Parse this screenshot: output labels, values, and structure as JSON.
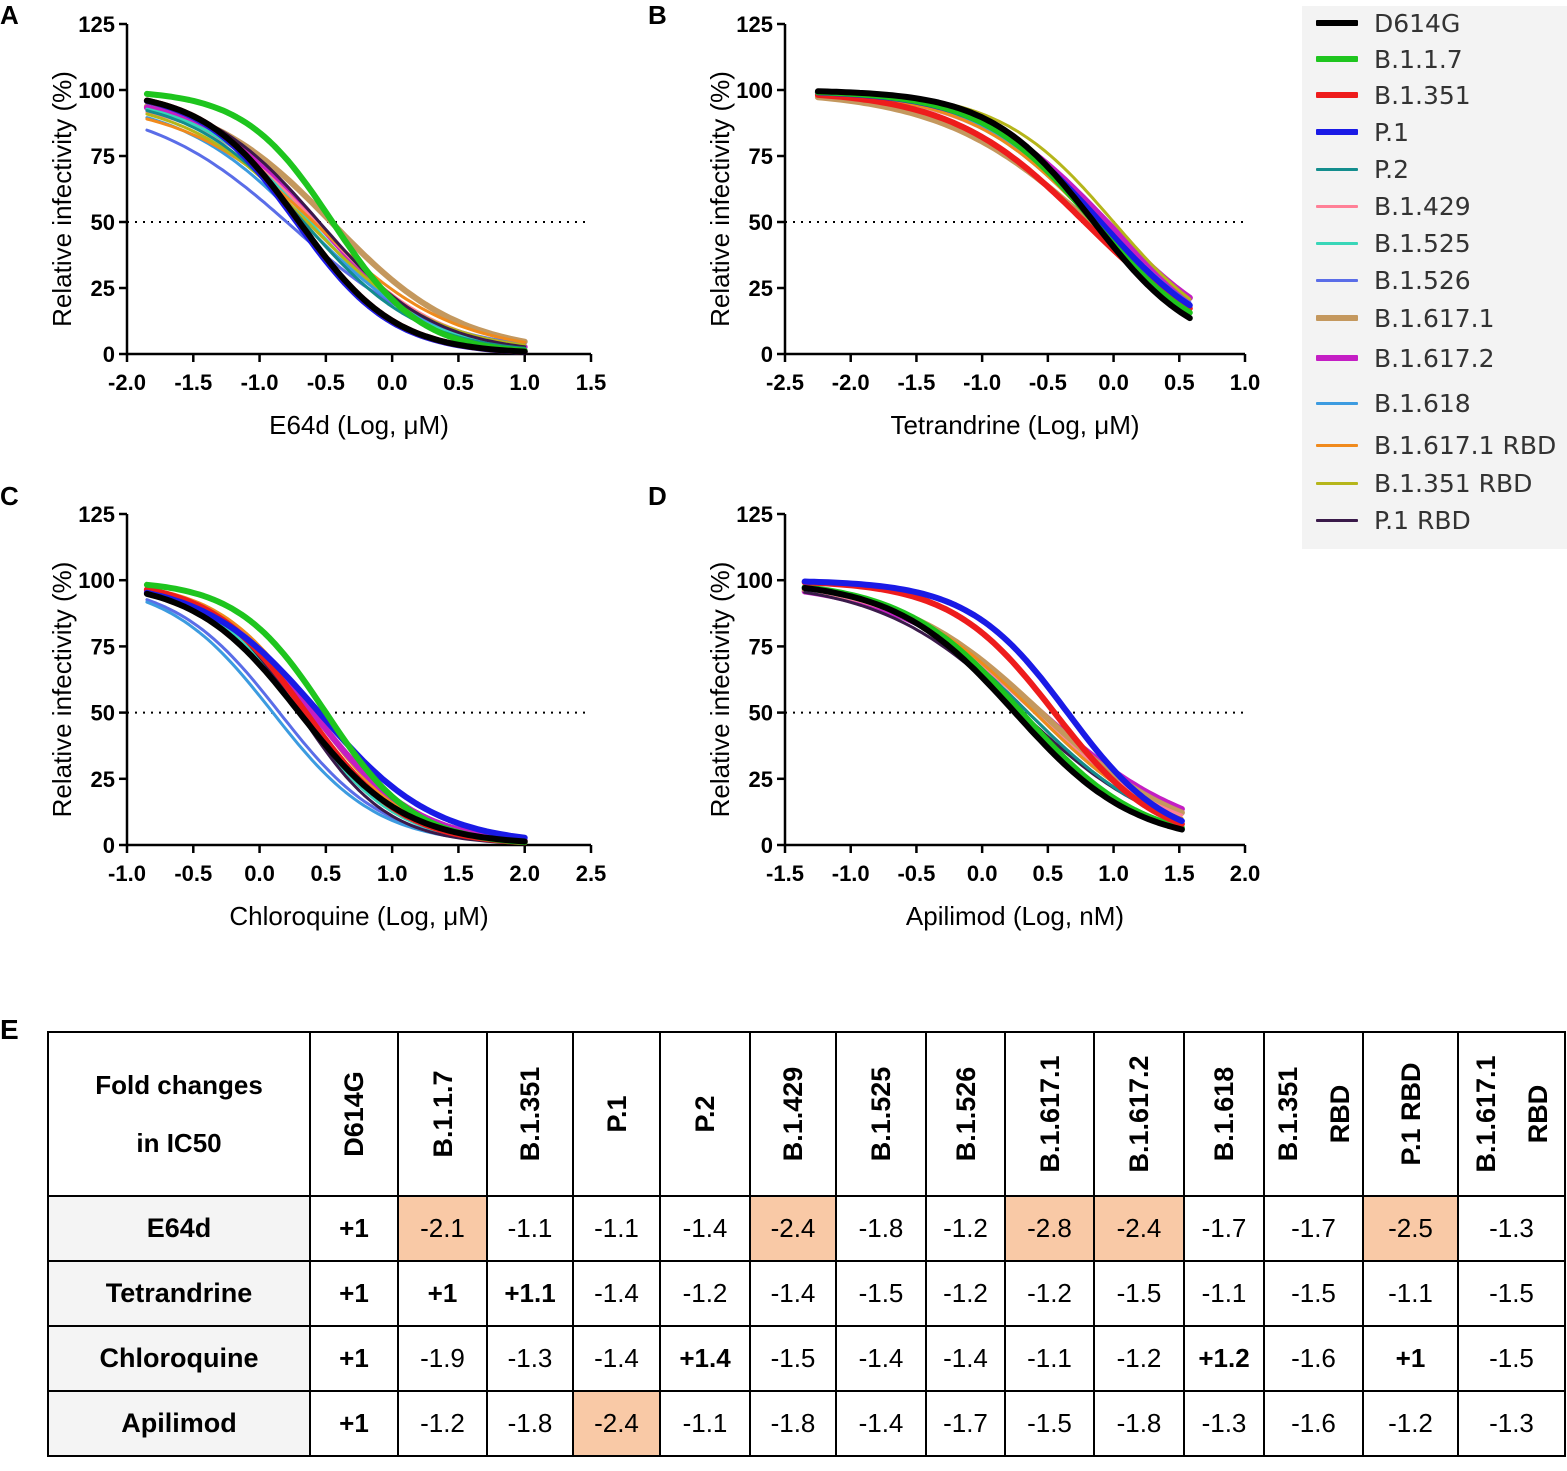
{
  "legend": [
    {
      "name": "D614G",
      "color": "#000000",
      "width": 6
    },
    {
      "name": "B.1.1.7",
      "color": "#1ec51e",
      "width": 6
    },
    {
      "name": "B.1.351",
      "color": "#ee1c1c",
      "width": 6
    },
    {
      "name": "P.1",
      "color": "#1a1ae6",
      "width": 6
    },
    {
      "name": "P.2",
      "color": "#138d8d",
      "width": 3
    },
    {
      "name": "B.1.429",
      "color": "#ff7f96",
      "width": 3
    },
    {
      "name": "B.1.525",
      "color": "#38d6b8",
      "width": 3
    },
    {
      "name": "B.1.526",
      "color": "#5a6de8",
      "width": 3
    },
    {
      "name": "B.1.617.1",
      "color": "#c4985e",
      "width": 6
    },
    {
      "name": "B.1.617.2",
      "color": "#c41ec4",
      "width": 6
    },
    {
      "name": "B.1.618",
      "color": "#3c9be0",
      "width": 3
    },
    {
      "name": "B.1.617.1 RBD",
      "color": "#f08a1c",
      "width": 3
    },
    {
      "name": "B.1.351 RBD",
      "color": "#b5b51a",
      "width": 3
    },
    {
      "name": "P.1 RBD",
      "color": "#3a1a4a",
      "width": 3
    }
  ],
  "chart_data": [
    {
      "type": "line",
      "panel": "A",
      "xlabel": "E64d (Log, μM)",
      "ylabel": "Relative infectivity (%)",
      "xlim": [
        -2.0,
        1.5
      ],
      "ylim": [
        0,
        125
      ],
      "xticks": [
        -2.0,
        -1.5,
        -1.0,
        -0.5,
        0.0,
        0.5,
        1.0,
        1.5
      ],
      "xtick_labels": [
        "-2.0",
        "-1.5",
        "-1.0",
        "-0.5",
        "0.0",
        "0.5",
        "1.0",
        "1.5"
      ],
      "yticks": [
        0,
        25,
        50,
        75,
        100,
        125
      ],
      "ytick_labels": [
        "0",
        "25",
        "50",
        "75",
        "100",
        "125"
      ],
      "reference_line": 50,
      "x_range": [
        -1.85,
        1.0
      ],
      "series": [
        {
          "name": "B.1.617.1",
          "ic50": -0.45,
          "hill": 0.9,
          "top": 99
        },
        {
          "name": "B.1.617.2",
          "ic50": -0.55,
          "hill": 1.0,
          "top": 98
        },
        {
          "name": "B.1.429",
          "ic50": -0.55,
          "hill": 0.95,
          "top": 97
        },
        {
          "name": "B.1.525",
          "ic50": -0.6,
          "hill": 1.0,
          "top": 98
        },
        {
          "name": "B.1.526",
          "ic50": -0.75,
          "hill": 0.8,
          "top": 96
        },
        {
          "name": "B.1.618",
          "ic50": -0.65,
          "hill": 0.9,
          "top": 97
        },
        {
          "name": "B.1.617.1 RBD",
          "ic50": -0.55,
          "hill": 0.85,
          "top": 96
        },
        {
          "name": "B.1.351 RBD",
          "ic50": -0.62,
          "hill": 0.9,
          "top": 98
        },
        {
          "name": "P.1 RBD",
          "ic50": -0.55,
          "hill": 1.0,
          "top": 100
        },
        {
          "name": "P.2",
          "ic50": -0.65,
          "hill": 1.0,
          "top": 98
        },
        {
          "name": "P.1",
          "ic50": -0.72,
          "hill": 1.2,
          "top": 100
        },
        {
          "name": "B.1.351",
          "ic50": -0.7,
          "hill": 1.2,
          "top": 100
        },
        {
          "name": "B.1.1.7",
          "ic50": -0.45,
          "hill": 1.3,
          "top": 100
        },
        {
          "name": "D614G",
          "ic50": -0.7,
          "hill": 1.2,
          "top": 100
        }
      ]
    },
    {
      "type": "line",
      "panel": "B",
      "xlabel": "Tetrandrine (Log, μM)",
      "ylabel": "Relative infectivity (%)",
      "xlim": [
        -2.5,
        1.0
      ],
      "ylim": [
        0,
        125
      ],
      "xticks": [
        -2.5,
        -2.0,
        -1.5,
        -1.0,
        -0.5,
        0.0,
        0.5,
        1.0
      ],
      "xtick_labels": [
        "-2.5",
        "-2.0",
        "-1.5",
        "-1.0",
        "-0.5",
        "0.0",
        "0.5",
        "1.0"
      ],
      "yticks": [
        0,
        25,
        50,
        75,
        100,
        125
      ],
      "ytick_labels": [
        "0",
        "25",
        "50",
        "75",
        "100",
        "125"
      ],
      "reference_line": 50,
      "x_range": [
        -2.25,
        0.58
      ],
      "series": [
        {
          "name": "B.1.617.1",
          "ic50": -0.18,
          "hill": 0.75,
          "top": 100
        },
        {
          "name": "B.1.429",
          "ic50": -0.1,
          "hill": 0.85,
          "top": 100
        },
        {
          "name": "B.1.525",
          "ic50": -0.15,
          "hill": 0.9,
          "top": 100
        },
        {
          "name": "B.1.526",
          "ic50": -0.1,
          "hill": 0.9,
          "top": 100
        },
        {
          "name": "B.1.617.2",
          "ic50": -0.05,
          "hill": 0.9,
          "top": 100
        },
        {
          "name": "B.1.618",
          "ic50": -0.12,
          "hill": 0.9,
          "top": 100
        },
        {
          "name": "B.1.617.1 RBD",
          "ic50": -0.15,
          "hill": 0.9,
          "top": 100
        },
        {
          "name": "B.1.351 RBD",
          "ic50": 0.0,
          "hill": 1.0,
          "top": 100
        },
        {
          "name": "P.1 RBD",
          "ic50": -0.12,
          "hill": 0.95,
          "top": 100
        },
        {
          "name": "P.2",
          "ic50": -0.12,
          "hill": 0.95,
          "top": 100
        },
        {
          "name": "B.1.351",
          "ic50": -0.22,
          "hill": 0.85,
          "top": 100
        },
        {
          "name": "P.1",
          "ic50": -0.1,
          "hill": 0.95,
          "top": 100
        },
        {
          "name": "B.1.1.7",
          "ic50": -0.15,
          "hill": 1.0,
          "top": 100
        },
        {
          "name": "D614G",
          "ic50": -0.15,
          "hill": 1.1,
          "top": 100
        }
      ]
    },
    {
      "type": "line",
      "panel": "C",
      "xlabel": "Chloroquine (Log, μM)",
      "ylabel": "Relative infectivity (%)",
      "xlim": [
        -1.0,
        2.5
      ],
      "ylim": [
        0,
        125
      ],
      "xticks": [
        -1.0,
        -0.5,
        0.0,
        0.5,
        1.0,
        1.5,
        2.0,
        2.5
      ],
      "xtick_labels": [
        "-1.0",
        "-0.5",
        "0.0",
        "0.5",
        "1.0",
        "1.5",
        "2.0",
        "2.5"
      ],
      "yticks": [
        0,
        25,
        50,
        75,
        100,
        125
      ],
      "ytick_labels": [
        "0",
        "25",
        "50",
        "75",
        "100",
        "125"
      ],
      "reference_line": 50,
      "x_range": [
        -0.85,
        2.0
      ],
      "series": [
        {
          "name": "B.1.526",
          "ic50": 0.15,
          "hill": 1.1,
          "top": 100
        },
        {
          "name": "B.1.618",
          "ic50": 0.1,
          "hill": 1.1,
          "top": 100
        },
        {
          "name": "P.2",
          "ic50": 0.3,
          "hill": 1.1,
          "top": 100
        },
        {
          "name": "B.1.429",
          "ic50": 0.35,
          "hill": 1.15,
          "top": 100
        },
        {
          "name": "B.1.525",
          "ic50": 0.3,
          "hill": 1.2,
          "top": 100
        },
        {
          "name": "B.1.617.1 RBD",
          "ic50": 0.4,
          "hill": 1.2,
          "top": 100
        },
        {
          "name": "B.1.351 RBD",
          "ic50": 0.5,
          "hill": 1.3,
          "top": 100
        },
        {
          "name": "P.1 RBD",
          "ic50": 0.3,
          "hill": 1.3,
          "top": 100
        },
        {
          "name": "B.1.617.1",
          "ic50": 0.4,
          "hill": 1.1,
          "top": 100
        },
        {
          "name": "B.1.617.2",
          "ic50": 0.4,
          "hill": 1.1,
          "top": 100
        },
        {
          "name": "B.1.351",
          "ic50": 0.35,
          "hill": 1.2,
          "top": 100
        },
        {
          "name": "P.1",
          "ic50": 0.45,
          "hill": 1.0,
          "top": 100
        },
        {
          "name": "B.1.1.7",
          "ic50": 0.5,
          "hill": 1.3,
          "top": 100
        },
        {
          "name": "D614G",
          "ic50": 0.3,
          "hill": 1.1,
          "top": 100
        }
      ]
    },
    {
      "type": "line",
      "panel": "D",
      "xlabel": "Apilimod (Log, nM)",
      "ylabel": "Relative infectivity (%)",
      "xlim": [
        -1.5,
        2.0
      ],
      "ylim": [
        0,
        125
      ],
      "xticks": [
        -1.5,
        -1.0,
        -0.5,
        0.0,
        0.5,
        1.0,
        1.5,
        2.0
      ],
      "xtick_labels": [
        "-1.5",
        "-1.0",
        "-0.5",
        "0.0",
        "0.5",
        "1.0",
        "1.5",
        "2.0"
      ],
      "yticks": [
        0,
        25,
        50,
        75,
        100,
        125
      ],
      "ytick_labels": [
        "0",
        "25",
        "50",
        "75",
        "100",
        "125"
      ],
      "reference_line": 50,
      "x_range": [
        -1.35,
        1.52
      ],
      "series": [
        {
          "name": "B.1.617.2",
          "ic50": 0.45,
          "hill": 0.75,
          "top": 100
        },
        {
          "name": "B.1.617.1",
          "ic50": 0.45,
          "hill": 0.8,
          "top": 100
        },
        {
          "name": "B.1.429",
          "ic50": 0.4,
          "hill": 0.8,
          "top": 100
        },
        {
          "name": "B.1.525",
          "ic50": 0.4,
          "hill": 0.85,
          "top": 100
        },
        {
          "name": "B.1.526",
          "ic50": 0.35,
          "hill": 0.85,
          "top": 100
        },
        {
          "name": "B.1.618",
          "ic50": 0.35,
          "hill": 0.85,
          "top": 100
        },
        {
          "name": "B.1.617.1 RBD",
          "ic50": 0.4,
          "hill": 0.85,
          "top": 100
        },
        {
          "name": "B.1.351 RBD",
          "ic50": 0.35,
          "hill": 0.85,
          "top": 100
        },
        {
          "name": "P.1 RBD",
          "ic50": 0.3,
          "hill": 0.8,
          "top": 100
        },
        {
          "name": "P.2",
          "ic50": 0.35,
          "hill": 0.85,
          "top": 100
        },
        {
          "name": "B.1.1.7",
          "ic50": 0.3,
          "hill": 0.95,
          "top": 100
        },
        {
          "name": "B.1.351",
          "ic50": 0.55,
          "hill": 1.1,
          "top": 100
        },
        {
          "name": "P.1",
          "ic50": 0.65,
          "hill": 1.15,
          "top": 100
        },
        {
          "name": "D614G",
          "ic50": 0.25,
          "hill": 0.95,
          "top": 100
        }
      ]
    },
    {
      "type": "table",
      "panel": "E",
      "header_lines": [
        "Fold changes",
        "in IC50"
      ],
      "columns": [
        "D614G",
        "B.1.1.7",
        "B.1.351",
        "P.1",
        "P.2",
        "B.1.429",
        "B.1.525",
        "B.1.526",
        "B.1.617.1",
        "B.1.617.2",
        "B.1.618",
        [
          "B.1.351",
          "RBD"
        ],
        [
          "P.1 RBD"
        ],
        [
          "B.1.617.1",
          "RBD"
        ]
      ],
      "rows": [
        {
          "name": "E64d",
          "values": [
            "+1",
            "-2.1",
            "-1.1",
            "-1.1",
            "-1.4",
            "-2.4",
            "-1.8",
            "-1.2",
            "-2.8",
            "-2.4",
            "-1.7",
            "-1.7",
            "-2.5",
            "-1.3"
          ],
          "highlight": [
            1,
            5,
            8,
            9,
            12
          ]
        },
        {
          "name": "Tetrandrine",
          "values": [
            "+1",
            "+1",
            "+1.1",
            "-1.4",
            "-1.2",
            "-1.4",
            "-1.5",
            "-1.2",
            "-1.2",
            "-1.5",
            "-1.1",
            "-1.5",
            "-1.1",
            "-1.5"
          ],
          "highlight": []
        },
        {
          "name": "Chloroquine",
          "values": [
            "+1",
            "-1.9",
            "-1.3",
            "-1.4",
            "+1.4",
            "-1.5",
            "-1.4",
            "-1.4",
            "-1.1",
            "-1.2",
            "+1.2",
            "-1.6",
            "+1",
            "-1.5"
          ],
          "highlight": []
        },
        {
          "name": "Apilimod",
          "values": [
            "+1",
            "-1.2",
            "-1.8",
            "-2.4",
            "-1.1",
            "-1.8",
            "-1.4",
            "-1.7",
            "-1.5",
            "-1.8",
            "-1.3",
            "-1.6",
            "-1.2",
            "-1.3"
          ],
          "highlight": [
            3
          ]
        }
      ],
      "highlight_color": "#f9c9a6"
    }
  ]
}
